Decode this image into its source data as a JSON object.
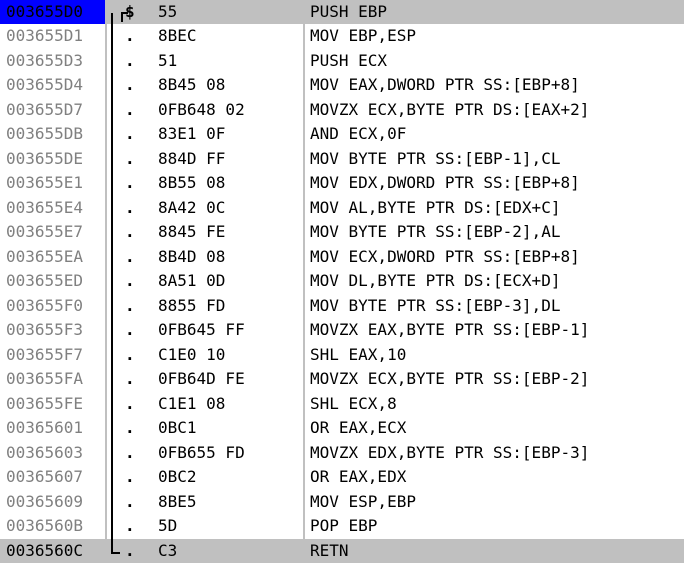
{
  "rows": [
    {
      "address": "003655D0",
      "marker": "$",
      "bytes": "55",
      "instruction": "PUSH EBP"
    },
    {
      "address": "003655D1",
      "marker": ".",
      "bytes": "8BEC",
      "instruction": "MOV EBP,ESP"
    },
    {
      "address": "003655D3",
      "marker": ".",
      "bytes": "51",
      "instruction": "PUSH ECX"
    },
    {
      "address": "003655D4",
      "marker": ".",
      "bytes": "8B45 08",
      "instruction": "MOV EAX,DWORD PTR SS:[EBP+8]"
    },
    {
      "address": "003655D7",
      "marker": ".",
      "bytes": "0FB648 02",
      "instruction": "MOVZX ECX,BYTE PTR DS:[EAX+2]"
    },
    {
      "address": "003655DB",
      "marker": ".",
      "bytes": "83E1 0F",
      "instruction": "AND ECX,0F"
    },
    {
      "address": "003655DE",
      "marker": ".",
      "bytes": "884D FF",
      "instruction": "MOV BYTE PTR SS:[EBP-1],CL"
    },
    {
      "address": "003655E1",
      "marker": ".",
      "bytes": "8B55 08",
      "instruction": "MOV EDX,DWORD PTR SS:[EBP+8]"
    },
    {
      "address": "003655E4",
      "marker": ".",
      "bytes": "8A42 0C",
      "instruction": "MOV AL,BYTE PTR DS:[EDX+C]"
    },
    {
      "address": "003655E7",
      "marker": ".",
      "bytes": "8845 FE",
      "instruction": "MOV BYTE PTR SS:[EBP-2],AL"
    },
    {
      "address": "003655EA",
      "marker": ".",
      "bytes": "8B4D 08",
      "instruction": "MOV ECX,DWORD PTR SS:[EBP+8]"
    },
    {
      "address": "003655ED",
      "marker": ".",
      "bytes": "8A51 0D",
      "instruction": "MOV DL,BYTE PTR DS:[ECX+D]"
    },
    {
      "address": "003655F0",
      "marker": ".",
      "bytes": "8855 FD",
      "instruction": "MOV BYTE PTR SS:[EBP-3],DL"
    },
    {
      "address": "003655F3",
      "marker": ".",
      "bytes": "0FB645 FF",
      "instruction": "MOVZX EAX,BYTE PTR SS:[EBP-1]"
    },
    {
      "address": "003655F7",
      "marker": ".",
      "bytes": "C1E0 10",
      "instruction": "SHL EAX,10"
    },
    {
      "address": "003655FA",
      "marker": ".",
      "bytes": "0FB64D FE",
      "instruction": "MOVZX ECX,BYTE PTR SS:[EBP-2]"
    },
    {
      "address": "003655FE",
      "marker": ".",
      "bytes": "C1E1 08",
      "instruction": "SHL ECX,8"
    },
    {
      "address": "00365601",
      "marker": ".",
      "bytes": "0BC1",
      "instruction": "OR EAX,ECX"
    },
    {
      "address": "00365603",
      "marker": ".",
      "bytes": "0FB655 FD",
      "instruction": "MOVZX EDX,BYTE PTR SS:[EBP-3]"
    },
    {
      "address": "00365607",
      "marker": ".",
      "bytes": "0BC2",
      "instruction": "OR EAX,EDX"
    },
    {
      "address": "00365609",
      "marker": ".",
      "bytes": "8BE5",
      "instruction": "MOV ESP,EBP"
    },
    {
      "address": "0036560B",
      "marker": ".",
      "bytes": "5D",
      "instruction": "POP EBP"
    },
    {
      "address": "0036560C",
      "marker": ".",
      "bytes": "C3",
      "instruction": "RETN"
    }
  ],
  "selected_row": 0,
  "current_row": 22,
  "colors": {
    "selected_address_bg": "#0000ff",
    "highlight_bg": "#c0c0c0",
    "address_text": "#808080",
    "text": "#000000",
    "background": "#ffffff"
  }
}
